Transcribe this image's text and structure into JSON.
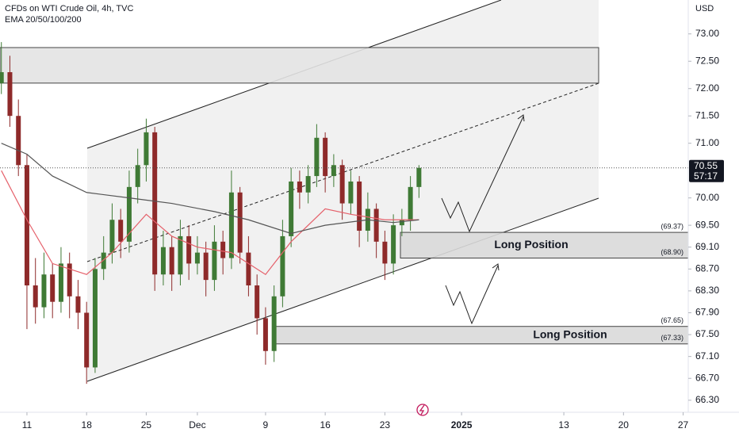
{
  "chart_data": {
    "type": "candlestick",
    "title": "CFDs on WTI Crude Oil, 4h, TVC",
    "subtitle": "EMA 20/50/100/200",
    "currency": "USD",
    "last_price": 70.55,
    "countdown": "57:17",
    "up_color": "#3f7a35",
    "down_color": "#8e2a2a",
    "ylim": [
      66.08,
      73.62
    ],
    "yticks": [
      {
        "value": 73,
        "label": "73.00"
      },
      {
        "value": 72.5,
        "label": "72.50"
      },
      {
        "value": 72,
        "label": "72.00"
      },
      {
        "value": 71.5,
        "label": "71.50"
      },
      {
        "value": 71,
        "label": "71.00"
      },
      {
        "value": 70,
        "label": "70.00"
      },
      {
        "value": 69.5,
        "label": "69.50"
      },
      {
        "value": 69.1,
        "label": "69.10"
      },
      {
        "value": 68.7,
        "label": "68.70"
      },
      {
        "value": 68.3,
        "label": "68.30"
      },
      {
        "value": 67.9,
        "label": "67.90"
      },
      {
        "value": 67.5,
        "label": "67.50"
      },
      {
        "value": 67.1,
        "label": "67.10"
      },
      {
        "value": 66.7,
        "label": "66.70"
      },
      {
        "value": 66.3,
        "label": "66.30"
      }
    ],
    "xlim": [
      -3.16,
      77.6
    ],
    "xticks": [
      {
        "value": 0,
        "label": "11"
      },
      {
        "value": 7,
        "label": "18"
      },
      {
        "value": 14,
        "label": "25"
      },
      {
        "value": 20,
        "label": "Dec"
      },
      {
        "value": 28,
        "label": "9"
      },
      {
        "value": 35,
        "label": "16"
      },
      {
        "value": 42,
        "label": "23"
      },
      {
        "value": 51,
        "label": "2025"
      },
      {
        "value": 63,
        "label": "13"
      },
      {
        "value": 70,
        "label": "20"
      },
      {
        "value": 77,
        "label": "27"
      }
    ],
    "candles": {
      "x": [
        -3,
        -2,
        -1,
        0,
        1,
        2,
        3,
        4,
        5,
        6,
        7,
        8,
        9,
        10,
        11,
        12,
        13,
        14,
        15,
        16,
        17,
        18,
        19,
        20,
        21,
        22,
        23,
        24,
        25,
        26,
        27,
        28,
        29,
        30,
        31,
        32,
        33,
        34,
        35,
        36,
        37,
        38,
        39,
        40,
        41,
        42,
        43,
        44,
        45,
        46
      ],
      "open": [
        72.1,
        72.3,
        71.5,
        70.6,
        68.4,
        68.0,
        68.6,
        68.1,
        68.8,
        68.2,
        67.9,
        66.9,
        68.7,
        69.0,
        69.6,
        69.2,
        70.2,
        70.6,
        71.2,
        68.6,
        69.1,
        68.6,
        69.3,
        68.8,
        69.0,
        68.5,
        69.2,
        68.9,
        70.1,
        69.0,
        68.4,
        67.8,
        67.2,
        68.2,
        69.3,
        70.3,
        70.1,
        70.4,
        71.1,
        70.4,
        70.6,
        69.9,
        70.3,
        69.4,
        69.8,
        69.2,
        68.8,
        69.5,
        69.6,
        70.2
      ],
      "high": [
        72.85,
        72.6,
        71.8,
        70.8,
        68.9,
        69.0,
        68.8,
        69.1,
        69.0,
        68.5,
        68.1,
        68.9,
        69.3,
        69.9,
        69.8,
        70.5,
        70.9,
        71.45,
        71.3,
        69.4,
        69.3,
        69.6,
        69.5,
        69.3,
        69.2,
        69.5,
        69.4,
        70.5,
        70.2,
        69.3,
        68.6,
        68.0,
        68.4,
        69.6,
        70.55,
        70.5,
        70.6,
        71.35,
        71.2,
        70.8,
        70.7,
        70.5,
        70.4,
        70.1,
        69.9,
        69.4,
        69.7,
        69.8,
        70.4,
        70.6
      ],
      "low": [
        71.9,
        71.3,
        70.4,
        67.6,
        67.7,
        67.8,
        67.8,
        67.9,
        67.8,
        67.6,
        66.6,
        66.8,
        68.5,
        68.8,
        68.9,
        69.0,
        69.9,
        70.3,
        68.3,
        68.4,
        68.3,
        68.4,
        68.5,
        68.6,
        68.2,
        68.3,
        68.6,
        68.7,
        68.8,
        68.2,
        67.5,
        66.95,
        67.0,
        68.0,
        69.1,
        69.8,
        69.9,
        70.2,
        70.1,
        70.2,
        69.6,
        69.7,
        69.1,
        69.2,
        68.9,
        68.5,
        68.6,
        69.3,
        69.4,
        70.0
      ],
      "close": [
        72.3,
        71.5,
        70.6,
        68.4,
        68.0,
        68.6,
        68.1,
        68.8,
        68.2,
        67.9,
        66.9,
        68.7,
        69.0,
        69.6,
        69.2,
        70.2,
        70.6,
        71.2,
        68.6,
        69.1,
        68.6,
        69.3,
        68.8,
        69.0,
        68.5,
        69.2,
        68.9,
        70.1,
        69.0,
        68.4,
        67.8,
        67.2,
        68.2,
        69.3,
        70.3,
        70.1,
        70.4,
        71.1,
        70.4,
        70.6,
        69.9,
        70.3,
        69.4,
        69.8,
        69.2,
        68.8,
        69.5,
        69.6,
        70.2,
        70.55
      ]
    },
    "ema": [
      {
        "color": "#e5606a",
        "x": [
          -3,
          0,
          3,
          7,
          10,
          14,
          17,
          20,
          24,
          28,
          31,
          35,
          38,
          42,
          46
        ],
        "values": [
          70.5,
          69.6,
          68.8,
          68.6,
          69.0,
          69.7,
          69.3,
          69.1,
          69.0,
          68.6,
          69.2,
          69.8,
          69.7,
          69.6,
          69.6
        ]
      },
      {
        "color": "#555555",
        "x": [
          -3,
          0,
          3,
          7,
          12,
          17,
          22,
          26,
          31,
          35,
          40,
          43,
          46
        ],
        "values": [
          71.0,
          70.8,
          70.4,
          70.1,
          70.0,
          69.9,
          69.75,
          69.6,
          69.35,
          69.5,
          69.6,
          69.55,
          69.6
        ]
      }
    ],
    "zones": [
      {
        "top": 72.75,
        "bottom": 72.1
      },
      {
        "title": "Long Position",
        "top": {
          "value": 69.37,
          "label": "(69.37)"
        },
        "bottom": {
          "value": 68.9,
          "label": "(68.90)"
        }
      },
      {
        "title": "Long Position",
        "top": {
          "value": 67.65,
          "label": "(67.65)"
        },
        "bottom": {
          "value": 67.33,
          "label": "(67.33)"
        }
      }
    ]
  }
}
